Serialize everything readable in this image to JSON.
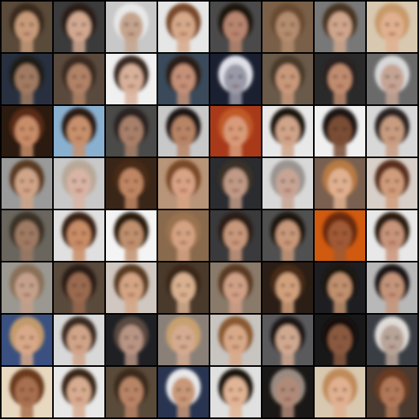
{
  "grid": {
    "rows": 8,
    "cols": 8,
    "separator_color": "#000000",
    "tiles": [
      {
        "bg": "#5a4a3a",
        "skin": "#c79a7a",
        "hair": "#3a2a1e"
      },
      {
        "bg": "#3b3b3b",
        "skin": "#d2a890",
        "hair": "#2a1e18"
      },
      {
        "bg": "#c8c8c8",
        "skin": "#c5a48e",
        "hair": "#e8e8e8"
      },
      {
        "bg": "#e6e6e6",
        "skin": "#d6a98a",
        "hair": "#7a4a2a"
      },
      {
        "bg": "#4a4a4a",
        "skin": "#b88670",
        "hair": "#1e1410"
      },
      {
        "bg": "#7a6048",
        "skin": "#b48c6e",
        "hair": "#6a4c32"
      },
      {
        "bg": "#787878",
        "skin": "#cfa68c",
        "hair": "#4a3424"
      },
      {
        "bg": "#d8c8b0",
        "skin": "#e0b090",
        "hair": "#c89a6a"
      },
      {
        "bg": "#283040",
        "skin": "#a07a62",
        "hair": "#1e1a18"
      },
      {
        "bg": "#5a4a3e",
        "skin": "#b08266",
        "hair": "#3a2c22"
      },
      {
        "bg": "#f0f0f0",
        "skin": "#d8b09a",
        "hair": "#3a2a20"
      },
      {
        "bg": "#3a4a5a",
        "skin": "#c49078",
        "hair": "#2a1e16"
      },
      {
        "bg": "#1a2030",
        "skin": "#9a9aa8",
        "hair": "#e0e0e8"
      },
      {
        "bg": "#6a5a4a",
        "skin": "#c8987a",
        "hair": "#4a3a2a"
      },
      {
        "bg": "#2a2a2a",
        "skin": "#c08c70",
        "hair": "#2a2020"
      },
      {
        "bg": "#6a6a6a",
        "skin": "#c4a494",
        "hair": "#d8d8d8"
      },
      {
        "bg": "#2a1a10",
        "skin": "#c88c68",
        "hair": "#5a2a12"
      },
      {
        "bg": "#8ab0d0",
        "skin": "#c8906c",
        "hair": "#2a1c14"
      },
      {
        "bg": "#4a4a48",
        "skin": "#a8806a",
        "hair": "#2a2420"
      },
      {
        "bg": "#c8c8c8",
        "skin": "#b88466",
        "hair": "#1e1812"
      },
      {
        "bg": "#a83a1a",
        "skin": "#d89a78",
        "hair": "#c05a28"
      },
      {
        "bg": "#e8e8e8",
        "skin": "#d0a488",
        "hair": "#1a1410"
      },
      {
        "bg": "#f0f0f0",
        "skin": "#7a4e36",
        "hair": "#1a1412"
      },
      {
        "bg": "#d8d8d8",
        "skin": "#c89c80",
        "hair": "#2a2420"
      },
      {
        "bg": "#9a9a9a",
        "skin": "#d0a488",
        "hair": "#5a3a24"
      },
      {
        "bg": "#c8c8c8",
        "skin": "#d8b4a4",
        "hair": "#b8a898"
      },
      {
        "bg": "#3a2618",
        "skin": "#c08664",
        "hair": "#4a2c18"
      },
      {
        "bg": "#b89478",
        "skin": "#d8a284",
        "hair": "#7a4a28"
      },
      {
        "bg": "#2a2c30",
        "skin": "#c09a86",
        "hair": "#3a3028"
      },
      {
        "bg": "#d8d8d8",
        "skin": "#c8a494",
        "hair": "#9a9490"
      },
      {
        "bg": "#7a6050",
        "skin": "#e0b090",
        "hair": "#b87a42"
      },
      {
        "bg": "#d8d0c8",
        "skin": "#d09c7c",
        "hair": "#5a2e1a"
      },
      {
        "bg": "#6a665e",
        "skin": "#9e7a64",
        "hair": "#3a3228"
      },
      {
        "bg": "#e0e0e0",
        "skin": "#c88c66",
        "hair": "#3a2414"
      },
      {
        "bg": "#f4f4f4",
        "skin": "#c0906e",
        "hair": "#2a1a10"
      },
      {
        "bg": "#8a6a4c",
        "skin": "#d4a282",
        "hair": "#9a7250"
      },
      {
        "bg": "#3a3a3c",
        "skin": "#c8987c",
        "hair": "#2a1e16"
      },
      {
        "bg": "#505050",
        "skin": "#c8987a",
        "hair": "#1a1410"
      },
      {
        "bg": "#d05a10",
        "skin": "#a05a34",
        "hair": "#6a2a10"
      },
      {
        "bg": "#e8e8e8",
        "skin": "#c8947a",
        "hair": "#2a1a10"
      },
      {
        "bg": "#9a9890",
        "skin": "#c4a08a",
        "hair": "#8a7058"
      },
      {
        "bg": "#5a4a3c",
        "skin": "#9a6a50",
        "hair": "#2a1e16"
      },
      {
        "bg": "#d0c8c0",
        "skin": "#d4a484",
        "hair": "#5a3a24"
      },
      {
        "bg": "#4a3a2c",
        "skin": "#d8b090",
        "hair": "#3a2818"
      },
      {
        "bg": "#8a7a6a",
        "skin": "#d0a086",
        "hair": "#5a3a24"
      },
      {
        "bg": "#2a1e16",
        "skin": "#d0a07c",
        "hair": "#4a2a14"
      },
      {
        "bg": "#1e1e22",
        "skin": "#c0906e",
        "hair": "#1a1410"
      },
      {
        "bg": "#b8b8b8",
        "skin": "#c4947a",
        "hair": "#1e1814"
      },
      {
        "bg": "#3a5080",
        "skin": "#d8a888",
        "hair": "#c09a6a"
      },
      {
        "bg": "#d8d8d8",
        "skin": "#d0a488",
        "hair": "#3a2a20"
      },
      {
        "bg": "#1e2024",
        "skin": "#b89484",
        "hair": "#5a4a40"
      },
      {
        "bg": "#8a8078",
        "skin": "#d4aa90",
        "hair": "#c8a070"
      },
      {
        "bg": "#c8c4c0",
        "skin": "#d8a888",
        "hair": "#8a5a32"
      },
      {
        "bg": "#5a5a5c",
        "skin": "#d0a890",
        "hair": "#1a1412"
      },
      {
        "bg": "#181818",
        "skin": "#8a5a40",
        "hair": "#140e0a"
      },
      {
        "bg": "#3a3e44",
        "skin": "#b8a498",
        "hair": "#e0dcd8"
      },
      {
        "bg": "#e8d8c0",
        "skin": "#a87050",
        "hair": "#6a3a1c"
      },
      {
        "bg": "#e8e8e8",
        "skin": "#d8ac90",
        "hair": "#3a2818"
      },
      {
        "bg": "#5a4a3a",
        "skin": "#b88466",
        "hair": "#3a2a1c"
      },
      {
        "bg": "#283450",
        "skin": "#c89878",
        "hair": "#e8e8e8"
      },
      {
        "bg": "#e0e0e0",
        "skin": "#e0b494",
        "hair": "#1a1410"
      },
      {
        "bg": "#1a1816",
        "skin": "#b08a78",
        "hair": "#9a8a80"
      },
      {
        "bg": "#d8c8b0",
        "skin": "#e0b090",
        "hair": "#c08a5a"
      },
      {
        "bg": "#4a3a30",
        "skin": "#b07858",
        "hair": "#6a3a20"
      }
    ]
  }
}
